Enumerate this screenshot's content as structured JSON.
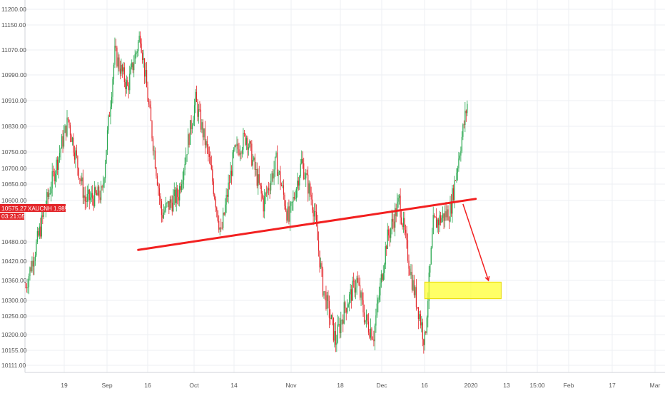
{
  "symbol": "XAUCNH",
  "change_pct": "1.98%",
  "last_price": "10575.27",
  "countdown": "03:21:05",
  "colors": {
    "up": "#26a64c",
    "down": "#e3262a",
    "grid": "#eceff3",
    "line": "#f22020",
    "zone_fill": "#ffff33",
    "zone_stroke": "#e8d800",
    "badge": "#e3262a"
  },
  "chart_data": {
    "type": "candlestick",
    "y_axis_labels": [
      "11200.00",
      "11150.00",
      "11070.00",
      "10990.00",
      "10910.00",
      "10830.00",
      "10750.00",
      "10700.00",
      "10650.00",
      "10600.00",
      "10480.00",
      "10420.00",
      "10360.00",
      "10300.00",
      "10250.00",
      "10200.00",
      "10155.00",
      "10111.00"
    ],
    "x_axis_labels": [
      "19",
      "Sep",
      "16",
      "Oct",
      "14",
      "Nov",
      "18",
      "Dec",
      "16",
      "2020",
      "13",
      "15:00",
      "Feb",
      "17",
      "Mar"
    ],
    "ylim": [
      10090,
      11230
    ],
    "price_path": [
      [
        0,
        10340
      ],
      [
        6,
        10650
      ],
      [
        10,
        10850
      ],
      [
        14,
        10600
      ],
      [
        18,
        10620
      ],
      [
        21,
        11060
      ],
      [
        24,
        10950
      ],
      [
        27,
        11120
      ],
      [
        29,
        10890
      ],
      [
        32,
        10560
      ],
      [
        36,
        10620
      ],
      [
        40,
        10910
      ],
      [
        43,
        10740
      ],
      [
        46,
        10500
      ],
      [
        49,
        10740
      ],
      [
        52,
        10800
      ],
      [
        56,
        10590
      ],
      [
        59,
        10720
      ],
      [
        62,
        10540
      ],
      [
        65,
        10720
      ],
      [
        68,
        10570
      ],
      [
        70,
        10340
      ],
      [
        73,
        10180
      ],
      [
        75,
        10270
      ],
      [
        78,
        10360
      ],
      [
        80,
        10240
      ],
      [
        82,
        10200
      ],
      [
        85,
        10480
      ],
      [
        88,
        10600
      ],
      [
        91,
        10360
      ],
      [
        94,
        10180
      ],
      [
        96,
        10530
      ],
      [
        100,
        10570
      ],
      [
        104,
        10900
      ]
    ],
    "trendline": {
      "from": [
        26.5,
        10455
      ],
      "to": [
        106,
        10605
      ]
    },
    "projection_arrow": {
      "from": [
        103,
        10590
      ],
      "to": [
        109,
        10360
      ]
    },
    "support_zone": {
      "x_range": [
        94,
        112
      ],
      "y_range": [
        10305,
        10355
      ]
    }
  }
}
